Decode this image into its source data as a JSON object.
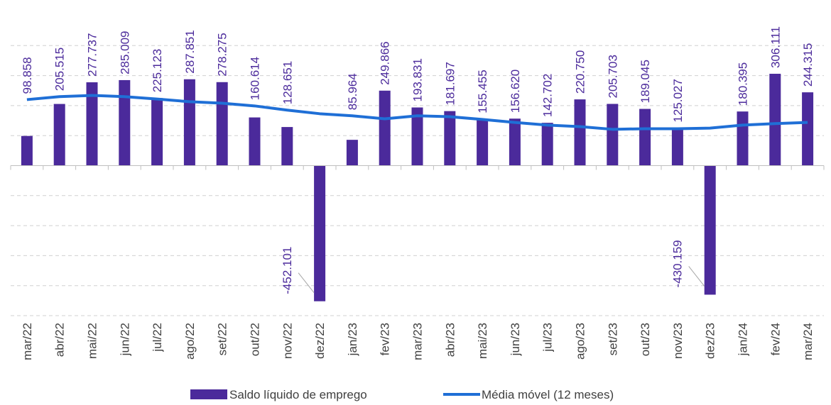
{
  "chart_data": {
    "type": "bar_line",
    "categories": [
      "mar/22",
      "abr/22",
      "mai/22",
      "jun/22",
      "jul/22",
      "ago/22",
      "set/22",
      "out/22",
      "nov/22",
      "dez/22",
      "jan/23",
      "fev/23",
      "mar/23",
      "abr/23",
      "mai/23",
      "jun/23",
      "jul/23",
      "ago/23",
      "set/23",
      "out/23",
      "nov/23",
      "dez/23",
      "jan/24",
      "fev/24",
      "mar/24"
    ],
    "series": [
      {
        "name": "Saldo líquido de emprego",
        "color": "#4b2a9b",
        "values": [
          98858,
          205515,
          277737,
          285009,
          225123,
          287851,
          278275,
          160614,
          128651,
          -452101,
          85964,
          249866,
          193831,
          181697,
          155455,
          156620,
          142702,
          220750,
          205703,
          189045,
          125027,
          -430159,
          180395,
          306111,
          244315
        ],
        "value_labels": [
          "98.858",
          "205.515",
          "277.737",
          "285.009",
          "225.123",
          "287.851",
          "278.275",
          "160.614",
          "128.651",
          "-452.101",
          "85.964",
          "249.866",
          "193.831",
          "181.697",
          "155.455",
          "156.620",
          "142.702",
          "220.750",
          "205.703",
          "189.045",
          "125.027",
          "-430.159",
          "180.395",
          "306.111",
          "244.315"
        ]
      },
      {
        "name": "Média móvel (12 meses)",
        "color": "#1f6fd6",
        "values": [
          220000,
          230000,
          234000,
          230000,
          222000,
          213000,
          208000,
          199000,
          185000,
          173000,
          166000,
          156000,
          166000,
          163000,
          154000,
          144000,
          135000,
          130000,
          121000,
          123000,
          123000,
          125000,
          135000,
          140000,
          144000
        ]
      }
    ],
    "ylim": [
      -500000,
      500000
    ],
    "yticks": [
      -500000,
      -400000,
      -300000,
      -200000,
      -100000,
      0,
      100000,
      200000,
      300000,
      400000
    ],
    "grid": true
  }
}
